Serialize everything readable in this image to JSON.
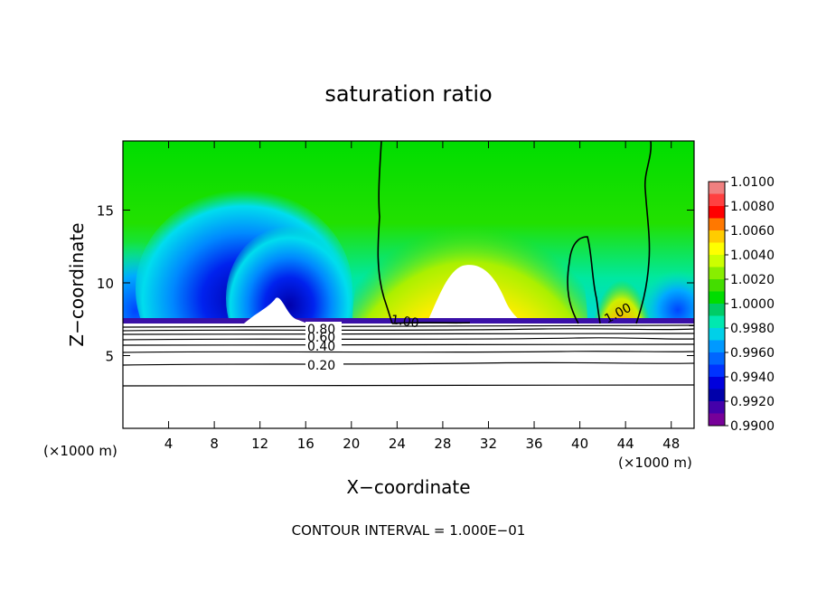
{
  "chart_data": {
    "type": "heatmap",
    "title": "saturation ratio",
    "xlabel": "X−coordinate",
    "ylabel": "Z−coordinate",
    "x_unit": "(×1000 m)",
    "xlim": [
      0,
      50
    ],
    "ylim": [
      0,
      19.75
    ],
    "x_ticks": [
      4,
      8,
      12,
      16,
      20,
      24,
      28,
      32,
      36,
      40,
      44,
      48
    ],
    "y_ticks": [
      5,
      10,
      15
    ],
    "colorbar": {
      "ticks": [
        "1.0100",
        "1.0080",
        "1.0060",
        "1.0040",
        "1.0020",
        "1.0000",
        "0.9980",
        "0.9960",
        "0.9940",
        "0.9920",
        "0.9900"
      ],
      "colors": [
        "#f08080",
        "#ff4040",
        "#ff0000",
        "#ff7800",
        "#ffcc00",
        "#ffff00",
        "#ccff00",
        "#88ee00",
        "#44dd00",
        "#00dd00",
        "#00cc66",
        "#00e8b0",
        "#00d0e8",
        "#0099ff",
        "#0066ff",
        "#0033ff",
        "#0000dd",
        "#0000aa",
        "#4400aa",
        "#770099"
      ]
    },
    "contour_labels": [
      "1.00",
      "1.00",
      "0.80",
      "0.60",
      "0.40",
      "0.20"
    ],
    "footnote": "CONTOUR INTERVAL = 1.000E−01"
  }
}
